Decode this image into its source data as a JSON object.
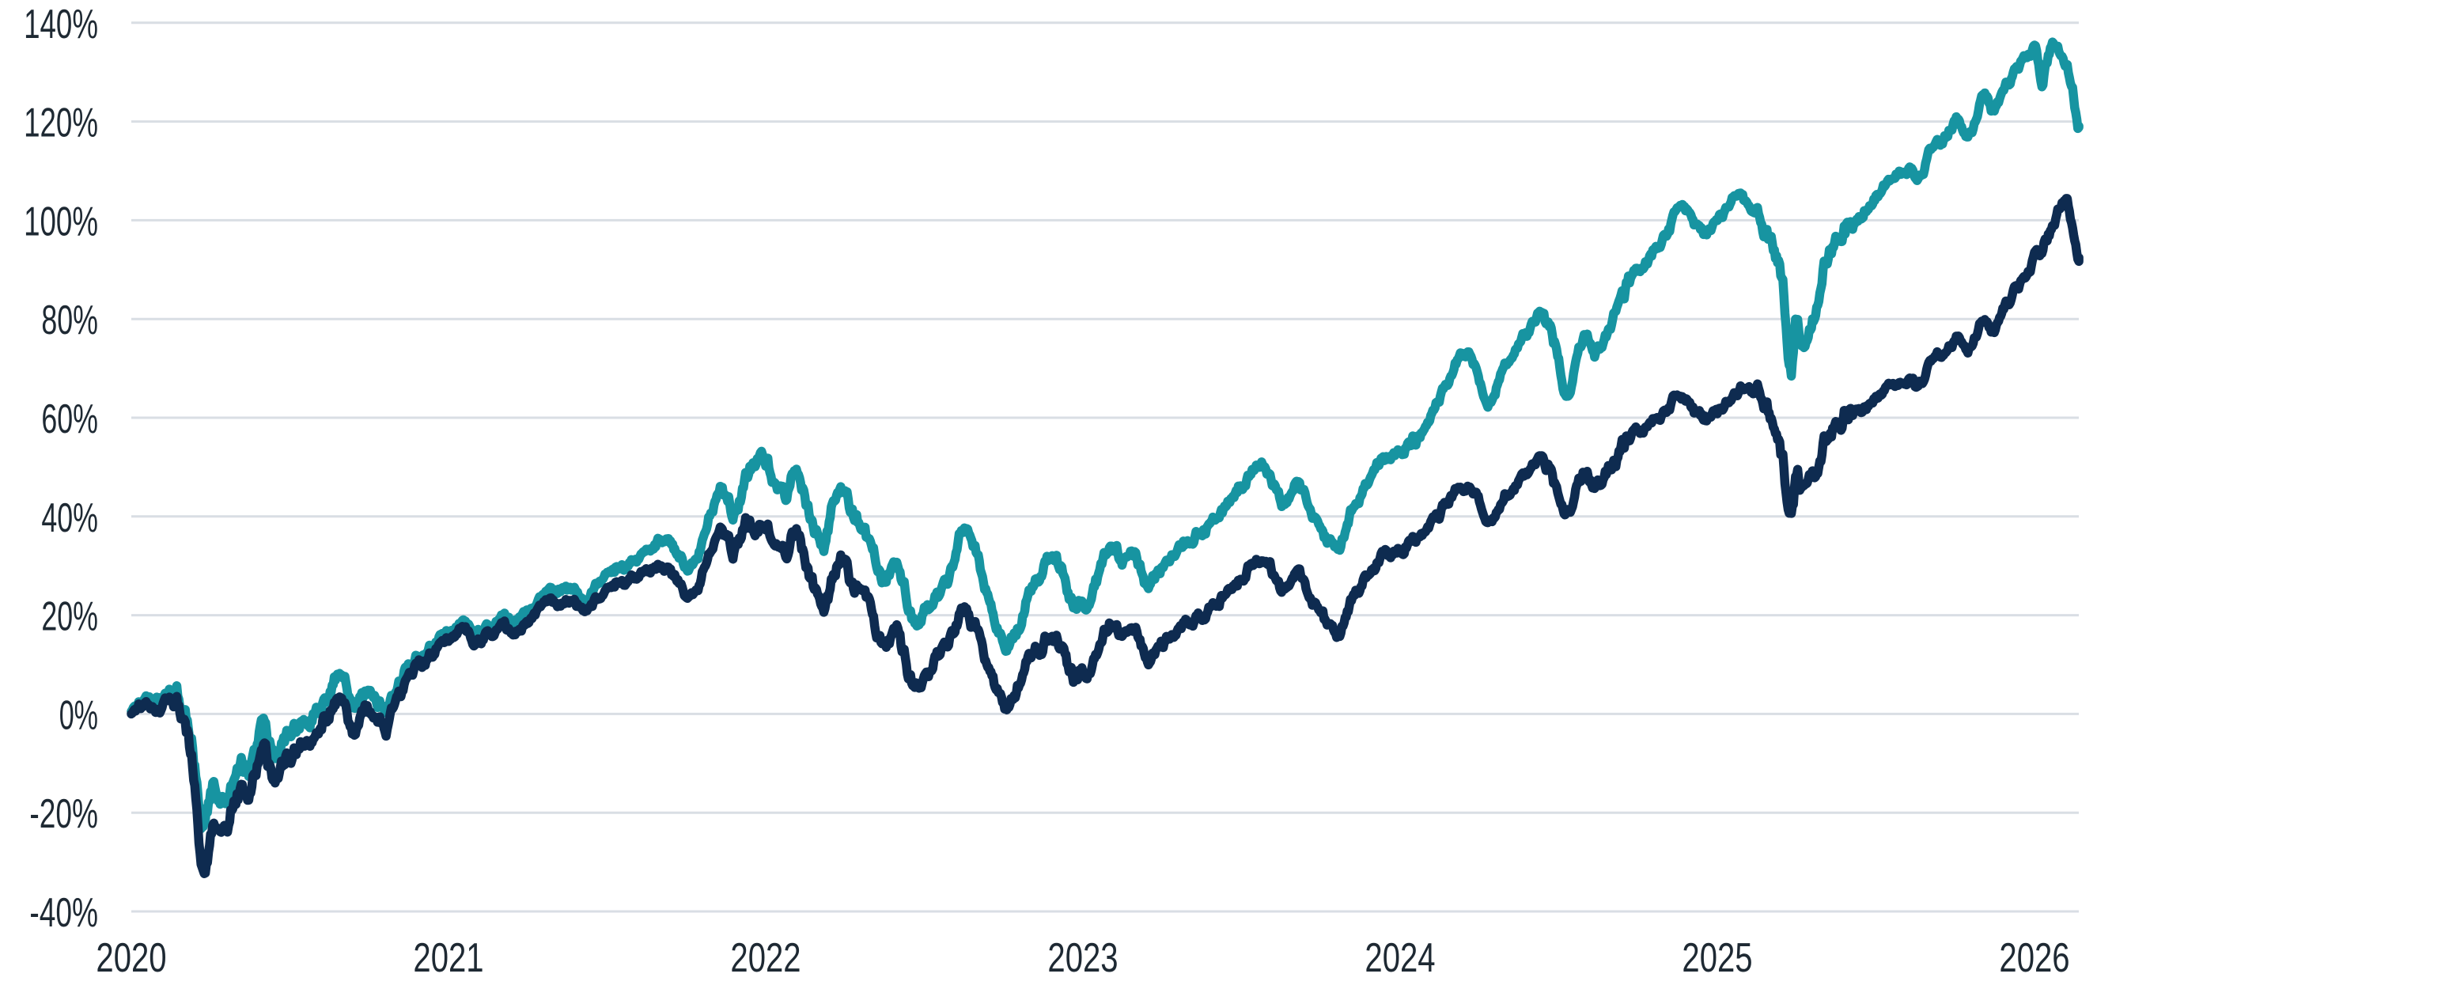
{
  "page": {
    "background_color": "#FFFFFF"
  },
  "chart_data": {
    "type": "line",
    "description_visible_text_only": true,
    "x_axis": {
      "tick_labels": [
        "2020",
        "2021",
        "2022",
        "2023",
        "2024",
        "2025",
        "2026"
      ],
      "tick_values": [
        2020,
        2021,
        2022,
        2023,
        2024,
        2025,
        2026
      ],
      "range": [
        2020.0,
        2026.14
      ],
      "gridlines": false
    },
    "y_axis": {
      "tick_labels": [
        "140%",
        "120%",
        "100%",
        "80%",
        "60%",
        "40%",
        "20%",
        "0%",
        "-20%",
        "-40%"
      ],
      "tick_values": [
        140,
        120,
        100,
        80,
        60,
        40,
        20,
        0,
        -20,
        -40
      ],
      "unit": "%",
      "range": [
        -40,
        140
      ],
      "gridlines": true
    },
    "legend": "none",
    "colors": {
      "series_teal": "#1794A1",
      "series_navy": "#0E2B50",
      "gridline": "#D9DEE4",
      "axis_label": "#1E2933"
    },
    "series": [
      {
        "id": "teal",
        "color_key": "series_teal",
        "noise_seed": 31,
        "anchors_t_pct": [
          [
            2020.0,
            0.5
          ],
          [
            2020.04,
            2.8
          ],
          [
            2020.07,
            1.2
          ],
          [
            2020.12,
            4.5
          ],
          [
            2020.15,
            2.5
          ],
          [
            2020.19,
            -7
          ],
          [
            2020.225,
            -23.5
          ],
          [
            2020.26,
            -14
          ],
          [
            2020.3,
            -16
          ],
          [
            2020.34,
            -10
          ],
          [
            2020.38,
            -9
          ],
          [
            2020.42,
            -4
          ],
          [
            2020.46,
            -8.5
          ],
          [
            2020.52,
            -3
          ],
          [
            2020.58,
            1
          ],
          [
            2020.62,
            5
          ],
          [
            2020.66,
            8
          ],
          [
            2020.71,
            1.5
          ],
          [
            2020.75,
            4.5
          ],
          [
            2020.79,
            0.5
          ],
          [
            2020.83,
            4
          ],
          [
            2020.88,
            10
          ],
          [
            2020.93,
            13.5
          ],
          [
            2021.0,
            16.5
          ],
          [
            2021.05,
            18.5
          ],
          [
            2021.09,
            16
          ],
          [
            2021.15,
            19.5
          ],
          [
            2021.22,
            19
          ],
          [
            2021.3,
            23.5
          ],
          [
            2021.37,
            25.5
          ],
          [
            2021.42,
            23.5
          ],
          [
            2021.5,
            28.5
          ],
          [
            2021.57,
            30.5
          ],
          [
            2021.63,
            33
          ],
          [
            2021.68,
            35.5
          ],
          [
            2021.73,
            31.5
          ],
          [
            2021.77,
            29.5
          ],
          [
            2021.83,
            41
          ],
          [
            2021.87,
            44.5
          ],
          [
            2021.91,
            41
          ],
          [
            2021.97,
            52.5
          ],
          [
            2022.02,
            49
          ],
          [
            2022.06,
            43.5
          ],
          [
            2022.1,
            48
          ],
          [
            2022.14,
            40
          ],
          [
            2022.18,
            33.5
          ],
          [
            2022.23,
            45.5
          ],
          [
            2022.28,
            40
          ],
          [
            2022.33,
            33
          ],
          [
            2022.37,
            26
          ],
          [
            2022.41,
            30
          ],
          [
            2022.47,
            17.5
          ],
          [
            2022.52,
            21
          ],
          [
            2022.57,
            26.5
          ],
          [
            2022.63,
            38
          ],
          [
            2022.68,
            30
          ],
          [
            2022.72,
            17.5
          ],
          [
            2022.76,
            14.8
          ],
          [
            2022.8,
            16.5
          ],
          [
            2022.84,
            25
          ],
          [
            2022.89,
            30
          ],
          [
            2022.92,
            30.5
          ],
          [
            2022.97,
            22.5
          ],
          [
            2023.02,
            25.5
          ],
          [
            2023.09,
            34.5
          ],
          [
            2023.13,
            31
          ],
          [
            2023.16,
            33
          ],
          [
            2023.2,
            27
          ],
          [
            2023.27,
            31.5
          ],
          [
            2023.34,
            35.5
          ],
          [
            2023.41,
            38.5
          ],
          [
            2023.47,
            44
          ],
          [
            2023.55,
            50.5
          ],
          [
            2023.6,
            46.5
          ],
          [
            2023.64,
            43.5
          ],
          [
            2023.68,
            46
          ],
          [
            2023.73,
            39
          ],
          [
            2023.8,
            34
          ],
          [
            2023.85,
            41
          ],
          [
            2023.92,
            50
          ],
          [
            2023.99,
            53.5
          ],
          [
            2024.04,
            55
          ],
          [
            2024.09,
            59.5
          ],
          [
            2024.15,
            67
          ],
          [
            2024.21,
            74
          ],
          [
            2024.27,
            64
          ],
          [
            2024.33,
            71
          ],
          [
            2024.4,
            77
          ],
          [
            2024.45,
            80.5
          ],
          [
            2024.5,
            71
          ],
          [
            2024.53,
            65.5
          ],
          [
            2024.58,
            76
          ],
          [
            2024.62,
            72.5
          ],
          [
            2024.67,
            81
          ],
          [
            2024.73,
            88
          ],
          [
            2024.79,
            93
          ],
          [
            2024.84,
            97
          ],
          [
            2024.89,
            103
          ],
          [
            2024.93,
            99
          ],
          [
            2024.96,
            97.5
          ],
          [
            2025.02,
            101
          ],
          [
            2025.06,
            105.5
          ],
          [
            2025.1,
            103
          ],
          [
            2025.14,
            99
          ],
          [
            2025.18,
            93
          ],
          [
            2025.205,
            88
          ],
          [
            2025.23,
            67.5
          ],
          [
            2025.25,
            79
          ],
          [
            2025.28,
            73.5
          ],
          [
            2025.33,
            89.5
          ],
          [
            2025.39,
            96
          ],
          [
            2025.45,
            101
          ],
          [
            2025.51,
            105
          ],
          [
            2025.56,
            108
          ],
          [
            2025.6,
            110.5
          ],
          [
            2025.63,
            108
          ],
          [
            2025.67,
            114
          ],
          [
            2025.72,
            117.5
          ],
          [
            2025.76,
            120.5
          ],
          [
            2025.8,
            118
          ],
          [
            2025.84,
            125.5
          ],
          [
            2025.87,
            122.5
          ],
          [
            2025.92,
            128
          ],
          [
            2025.96,
            132
          ],
          [
            2026.0,
            134.5
          ],
          [
            2026.025,
            129.5
          ],
          [
            2026.05,
            135.5
          ],
          [
            2026.08,
            134
          ],
          [
            2026.1,
            131
          ],
          [
            2026.12,
            126
          ],
          [
            2026.14,
            119
          ],
          [
            2026.155,
            116.5
          ]
        ]
      },
      {
        "id": "navy",
        "color_key": "series_navy",
        "noise_seed": 77,
        "anchors_t_pct": [
          [
            2020.0,
            0
          ],
          [
            2020.04,
            1.8
          ],
          [
            2020.07,
            0.2
          ],
          [
            2020.12,
            3.5
          ],
          [
            2020.15,
            1
          ],
          [
            2020.19,
            -9
          ],
          [
            2020.23,
            -33
          ],
          [
            2020.26,
            -20
          ],
          [
            2020.3,
            -21.5
          ],
          [
            2020.34,
            -15
          ],
          [
            2020.38,
            -13.5
          ],
          [
            2020.42,
            -9
          ],
          [
            2020.46,
            -13.5
          ],
          [
            2020.52,
            -8
          ],
          [
            2020.58,
            -4
          ],
          [
            2020.62,
            0.5
          ],
          [
            2020.66,
            3
          ],
          [
            2020.71,
            -3
          ],
          [
            2020.75,
            0.5
          ],
          [
            2020.79,
            -3.5
          ],
          [
            2020.83,
            1.5
          ],
          [
            2020.88,
            8
          ],
          [
            2020.93,
            12
          ],
          [
            2021.0,
            15
          ],
          [
            2021.05,
            17
          ],
          [
            2021.09,
            14
          ],
          [
            2021.15,
            17.5
          ],
          [
            2021.22,
            17
          ],
          [
            2021.3,
            21.5
          ],
          [
            2021.37,
            23
          ],
          [
            2021.42,
            21
          ],
          [
            2021.5,
            25.5
          ],
          [
            2021.57,
            27
          ],
          [
            2021.63,
            28.5
          ],
          [
            2021.68,
            30
          ],
          [
            2021.73,
            26.5
          ],
          [
            2021.77,
            24
          ],
          [
            2021.83,
            33.5
          ],
          [
            2021.87,
            36
          ],
          [
            2021.91,
            33.5
          ],
          [
            2021.95,
            38.5
          ],
          [
            2022.0,
            37.5
          ],
          [
            2022.02,
            36
          ],
          [
            2022.06,
            31.5
          ],
          [
            2022.1,
            35.5
          ],
          [
            2022.14,
            28
          ],
          [
            2022.18,
            21.5
          ],
          [
            2022.23,
            31
          ],
          [
            2022.28,
            26.5
          ],
          [
            2022.33,
            21
          ],
          [
            2022.37,
            13.5
          ],
          [
            2022.41,
            17
          ],
          [
            2022.47,
            4.5
          ],
          [
            2022.52,
            8.5
          ],
          [
            2022.57,
            13
          ],
          [
            2022.63,
            21
          ],
          [
            2022.68,
            15
          ],
          [
            2022.72,
            4.5
          ],
          [
            2022.76,
            3
          ],
          [
            2022.8,
            5
          ],
          [
            2022.84,
            11.5
          ],
          [
            2022.89,
            14.5
          ],
          [
            2022.92,
            15
          ],
          [
            2022.97,
            8.5
          ],
          [
            2023.02,
            11
          ],
          [
            2023.09,
            18.5
          ],
          [
            2023.13,
            15.5
          ],
          [
            2023.16,
            17
          ],
          [
            2023.2,
            11.5
          ],
          [
            2023.27,
            15.5
          ],
          [
            2023.34,
            19
          ],
          [
            2023.41,
            21.5
          ],
          [
            2023.47,
            26
          ],
          [
            2023.55,
            31
          ],
          [
            2023.6,
            28
          ],
          [
            2023.64,
            25.5
          ],
          [
            2023.68,
            27.5
          ],
          [
            2023.73,
            21.5
          ],
          [
            2023.8,
            17
          ],
          [
            2023.85,
            23.5
          ],
          [
            2023.92,
            30.5
          ],
          [
            2023.99,
            33.5
          ],
          [
            2024.04,
            35
          ],
          [
            2024.09,
            38
          ],
          [
            2024.15,
            43
          ],
          [
            2024.21,
            47
          ],
          [
            2024.27,
            40
          ],
          [
            2024.33,
            44.5
          ],
          [
            2024.4,
            49
          ],
          [
            2024.45,
            51.5
          ],
          [
            2024.5,
            44.5
          ],
          [
            2024.53,
            41.5
          ],
          [
            2024.58,
            48
          ],
          [
            2024.62,
            45.5
          ],
          [
            2024.67,
            51
          ],
          [
            2024.73,
            56
          ],
          [
            2024.79,
            59
          ],
          [
            2024.84,
            61.5
          ],
          [
            2024.89,
            64.5
          ],
          [
            2024.93,
            61
          ],
          [
            2024.96,
            59
          ],
          [
            2025.02,
            62
          ],
          [
            2025.06,
            65.5
          ],
          [
            2025.1,
            66
          ],
          [
            2025.14,
            63.5
          ],
          [
            2025.18,
            56.5
          ],
          [
            2025.205,
            52
          ],
          [
            2025.23,
            39.5
          ],
          [
            2025.25,
            47.5
          ],
          [
            2025.28,
            44
          ],
          [
            2025.33,
            54
          ],
          [
            2025.39,
            58.5
          ],
          [
            2025.45,
            62
          ],
          [
            2025.51,
            64.5
          ],
          [
            2025.56,
            66.5
          ],
          [
            2025.6,
            68
          ],
          [
            2025.63,
            66
          ],
          [
            2025.67,
            71
          ],
          [
            2025.72,
            74
          ],
          [
            2025.76,
            76.5
          ],
          [
            2025.8,
            74.5
          ],
          [
            2025.84,
            80.5
          ],
          [
            2025.87,
            78.5
          ],
          [
            2025.92,
            83.5
          ],
          [
            2025.96,
            88
          ],
          [
            2026.0,
            92
          ],
          [
            2026.03,
            95.5
          ],
          [
            2026.06,
            99.5
          ],
          [
            2026.09,
            103
          ],
          [
            2026.105,
            103.5
          ],
          [
            2026.12,
            98
          ],
          [
            2026.14,
            92
          ],
          [
            2026.155,
            87
          ]
        ]
      }
    ]
  }
}
